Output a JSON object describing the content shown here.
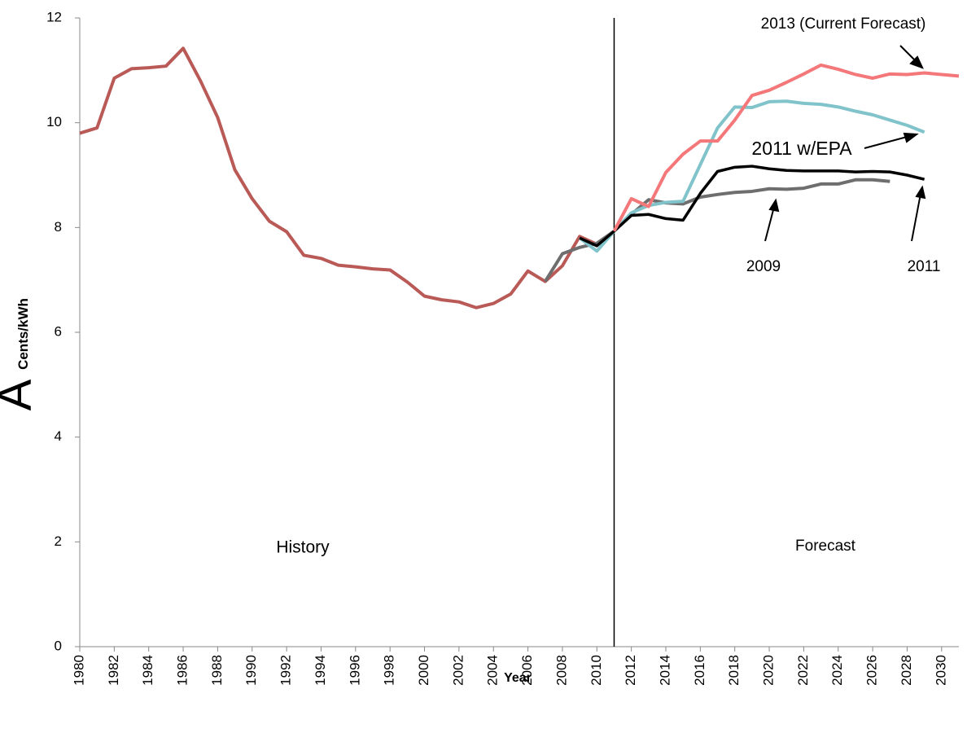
{
  "chart_data": {
    "type": "line",
    "xlabel": "Year",
    "ylabel": "A",
    "ylabel_sub": "Cents/kWh",
    "x": [
      1980,
      1981,
      1982,
      1983,
      1984,
      1985,
      1986,
      1987,
      1988,
      1989,
      1990,
      1991,
      1992,
      1993,
      1994,
      1995,
      1996,
      1997,
      1998,
      1999,
      2000,
      2001,
      2002,
      2003,
      2004,
      2005,
      2006,
      2007,
      2008,
      2009,
      2010,
      2011,
      2012,
      2013,
      2014,
      2015,
      2016,
      2017,
      2018,
      2019,
      2020,
      2021,
      2022,
      2023,
      2024,
      2025,
      2026,
      2027,
      2028,
      2029,
      2030,
      2031
    ],
    "series": [
      {
        "color": "#b95a57",
        "values": [
          9.8,
          9.9,
          10.85,
          11.03,
          11.05,
          11.08,
          11.42,
          10.8,
          10.1,
          9.1,
          8.55,
          8.12,
          7.92,
          7.47,
          7.41,
          7.28,
          7.25,
          7.21,
          7.19,
          6.96,
          6.69,
          6.62,
          6.58,
          6.47,
          6.55,
          6.73,
          7.17,
          6.97,
          7.27,
          7.83,
          7.68,
          7.93,
          null,
          null,
          null,
          null,
          null,
          null,
          null,
          null,
          null,
          null,
          null,
          null,
          null,
          null,
          null,
          null,
          null,
          null,
          null,
          null
        ]
      },
      {
        "color": "#6e6e6e",
        "values": [
          null,
          null,
          null,
          null,
          null,
          null,
          null,
          null,
          null,
          null,
          null,
          null,
          null,
          null,
          null,
          null,
          null,
          null,
          null,
          null,
          null,
          null,
          null,
          null,
          null,
          null,
          null,
          6.97,
          7.5,
          7.62,
          7.7,
          7.93,
          8.25,
          8.53,
          8.47,
          8.45,
          8.58,
          8.63,
          8.67,
          8.69,
          8.74,
          8.73,
          8.75,
          8.83,
          8.83,
          8.91,
          8.91,
          8.88,
          null,
          null,
          null,
          null
        ]
      },
      {
        "color": "#80c3cb",
        "values": [
          null,
          null,
          null,
          null,
          null,
          null,
          null,
          null,
          null,
          null,
          null,
          null,
          null,
          null,
          null,
          null,
          null,
          null,
          null,
          null,
          null,
          null,
          null,
          null,
          null,
          null,
          null,
          null,
          null,
          7.8,
          7.55,
          7.93,
          8.28,
          8.42,
          8.48,
          8.5,
          9.2,
          9.9,
          10.3,
          10.29,
          10.4,
          10.41,
          10.37,
          10.35,
          10.3,
          10.22,
          10.15,
          10.05,
          9.95,
          9.82,
          null,
          null
        ]
      },
      {
        "color": "#000000",
        "values": [
          null,
          null,
          null,
          null,
          null,
          null,
          null,
          null,
          null,
          null,
          null,
          null,
          null,
          null,
          null,
          null,
          null,
          null,
          null,
          null,
          null,
          null,
          null,
          null,
          null,
          null,
          null,
          null,
          null,
          7.8,
          7.65,
          7.93,
          8.23,
          8.25,
          8.17,
          8.14,
          8.65,
          9.07,
          9.15,
          9.17,
          9.12,
          9.09,
          9.08,
          9.08,
          9.08,
          9.06,
          9.07,
          9.06,
          9.0,
          8.92,
          null,
          null
        ]
      },
      {
        "color": "#f4777a",
        "values": [
          null,
          null,
          null,
          null,
          null,
          null,
          null,
          null,
          null,
          null,
          null,
          null,
          null,
          null,
          null,
          null,
          null,
          null,
          null,
          null,
          null,
          null,
          null,
          null,
          null,
          null,
          null,
          null,
          null,
          null,
          null,
          7.93,
          8.55,
          8.4,
          9.05,
          9.4,
          9.65,
          9.65,
          10.05,
          10.52,
          10.62,
          10.77,
          10.93,
          11.1,
          11.02,
          10.92,
          10.85,
          10.93,
          10.92,
          10.95,
          10.92,
          10.89
        ]
      }
    ],
    "divider_x": 2011,
    "annotations": [
      "History",
      "Forecast",
      "2013 (Current Forecast)",
      "2011 w/EPA",
      "2009",
      "2011"
    ],
    "xlim": [
      1980,
      2031
    ],
    "xticks": [
      1980,
      1982,
      1984,
      1986,
      1988,
      1990,
      1992,
      1994,
      1996,
      1998,
      2000,
      2002,
      2004,
      2006,
      2008,
      2010,
      2012,
      2014,
      2016,
      2018,
      2020,
      2022,
      2024,
      2026,
      2028,
      2030
    ],
    "ylim": [
      0,
      12
    ],
    "yticks": [
      0,
      2,
      4,
      6,
      8,
      10,
      12
    ]
  }
}
